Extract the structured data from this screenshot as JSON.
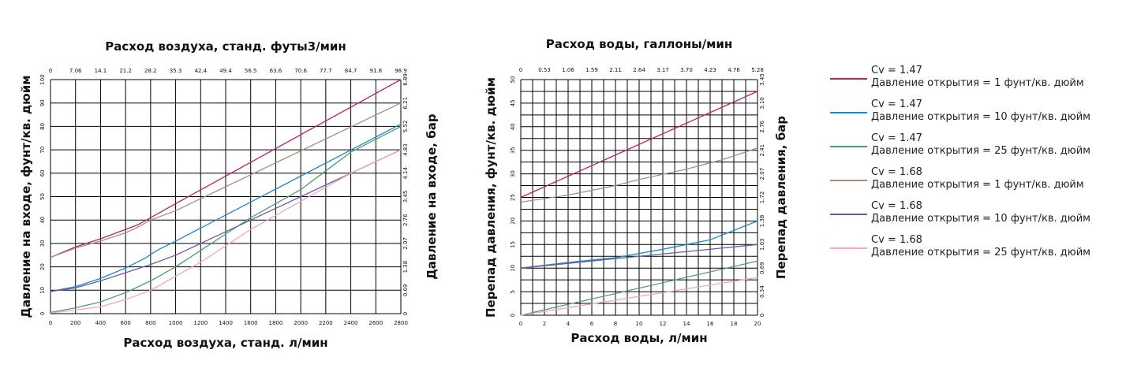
{
  "colors": {
    "s1": "#b5206e",
    "s2": "#1f86c8",
    "s3": "#4e9e6a",
    "s4": "#a89078",
    "s5": "#6a5aa8",
    "s6": "#f0a8b4"
  },
  "chart_data": [
    {
      "type": "line",
      "title": "Расход воздуха, станд. футы3/мин",
      "xlabel": "Расход воздуха, станд. л/мин",
      "ylabel": "Давление на входе, фунт/кв. дюйм",
      "y2label": "Давление на входе, бар",
      "xlim": [
        0,
        2800
      ],
      "ylim": [
        0,
        100
      ],
      "grid": true,
      "x_ticks": [
        "0",
        "200",
        "400",
        "600",
        "800",
        "1000",
        "1200",
        "1400",
        "1600",
        "1800",
        "2000",
        "2200",
        "2400",
        "2600",
        "2800"
      ],
      "x2_ticks": [
        "0",
        "7.06",
        "14.1",
        "21.2",
        "28.2",
        "35.3",
        "42.4",
        "49.4",
        "56.5",
        "63.6",
        "70.6",
        "77.7",
        "84.7",
        "91.8",
        "98.9"
      ],
      "y_ticks": [
        "0",
        "10",
        "20",
        "30",
        "40",
        "50",
        "60",
        "70",
        "80",
        "90",
        "100"
      ],
      "y2_ticks": [
        "0",
        "0.69",
        "1.38",
        "2.07",
        "2.76",
        "3.45",
        "4.14",
        "4.83",
        "5.52",
        "6.21",
        "6.89"
      ],
      "series": [
        {
          "name": "Cv = 1.47 / 1 фунт/кв. дюйм",
          "color": "s1",
          "x": [
            0,
            200,
            400,
            600,
            700,
            800,
            1000,
            2800
          ],
          "y": [
            24,
            28.5,
            32,
            36,
            38,
            41,
            47,
            100
          ]
        },
        {
          "name": "Cv = 1.47 / 10 фунт/кв. дюйм",
          "color": "s2",
          "x": [
            0,
            200,
            400,
            600,
            750,
            850,
            1000,
            2800
          ],
          "y": [
            9.5,
            11.5,
            15,
            19.5,
            23.5,
            27,
            31,
            81
          ]
        },
        {
          "name": "Cv = 1.47 / 25 фунт/кв. дюйм",
          "color": "s3",
          "x": [
            0,
            200,
            400,
            600,
            800,
            1000,
            1200,
            1400,
            1600,
            1800,
            2000,
            2200,
            2400,
            2600,
            2800
          ],
          "y": [
            0.5,
            2.5,
            5,
            9,
            14,
            20,
            27,
            34,
            41,
            47,
            53,
            61,
            69,
            74.5,
            80
          ]
        },
        {
          "name": "Cv = 1.68 / 1 фунт/кв. дюйм",
          "color": "s4",
          "x": [
            0,
            200,
            400,
            600,
            700,
            800,
            1000,
            2800
          ],
          "y": [
            24,
            28,
            31,
            34.5,
            37,
            40,
            44,
            90
          ]
        },
        {
          "name": "Cv = 1.68 / 10 фунт/кв. дюйм",
          "color": "s5",
          "x": [
            0,
            200,
            400,
            600,
            800,
            1000,
            2800
          ],
          "y": [
            9.5,
            11,
            14,
            17.5,
            21,
            25,
            70
          ]
        },
        {
          "name": "Cv = 1.68 / 25 фунт/кв. дюйм",
          "color": "s6",
          "x": [
            0,
            200,
            400,
            600,
            800,
            1000,
            1200,
            1400,
            1600,
            1800,
            2000,
            2200,
            2400,
            2600,
            2800
          ],
          "y": [
            0.3,
            1.5,
            3,
            6,
            10,
            16,
            22,
            29,
            36,
            42,
            48,
            54,
            60,
            65,
            70
          ]
        }
      ]
    },
    {
      "type": "line",
      "title": "Расход воды, галлоны/мин",
      "xlabel": "Расход воды, л/мин",
      "ylabel": "Перепад давления, фунт/кв. дюйм",
      "y2label": "Перепад давления, бар",
      "xlim": [
        0,
        20
      ],
      "ylim": [
        0,
        50
      ],
      "grid": true,
      "x_ticks": [
        "0",
        "2",
        "4",
        "6",
        "8",
        "10",
        "12",
        "14",
        "16",
        "18",
        "20"
      ],
      "x2_ticks": [
        "0",
        "0.53",
        "1.06",
        "1.59",
        "2.11",
        "2.64",
        "3.17",
        "3.70",
        "4.23",
        "4.76",
        "5.28"
      ],
      "y_ticks": [
        "0",
        "5",
        "10",
        "15",
        "20",
        "25",
        "30",
        "35",
        "40",
        "45",
        "50"
      ],
      "y2_ticks": [
        "0",
        "0.34",
        "0.69",
        "1.03",
        "1.38",
        "1.72",
        "2.07",
        "2.41",
        "2.76",
        "3.10",
        "3.45"
      ],
      "series": [
        {
          "name": "Cv = 1.47 / 1 фунт/кв. дюйм",
          "color": "s1",
          "x": [
            0,
            20
          ],
          "y": [
            25,
            47.5
          ]
        },
        {
          "name": "Cv = 1.47 / 10 фунт/кв. дюйм",
          "color": "s2",
          "x": [
            0,
            4,
            8,
            12,
            16,
            20
          ],
          "y": [
            10,
            11.2,
            12.2,
            14,
            16,
            20
          ]
        },
        {
          "name": "Cv = 1.47 / 25 фунт/кв. дюйм",
          "color": "s3",
          "x": [
            0,
            20
          ],
          "y": [
            0,
            11.5
          ]
        },
        {
          "name": "Cv = 1.68 / 1 фунт/кв. дюйм",
          "color": "s4",
          "x": [
            0,
            4,
            8,
            10,
            14,
            17,
            20
          ],
          "y": [
            24,
            25.5,
            27.5,
            28.8,
            31,
            33,
            35.5
          ]
        },
        {
          "name": "Cv = 1.68 / 10 фунт/кв. дюйм",
          "color": "s5",
          "x": [
            0,
            20
          ],
          "y": [
            10,
            15
          ]
        },
        {
          "name": "Cv = 1.68 / 25 фунт/кв. дюйм",
          "color": "s6",
          "x": [
            0,
            20
          ],
          "y": [
            0,
            8
          ]
        }
      ]
    }
  ],
  "legend": {
    "items": [
      {
        "line1": "Cv = 1.47",
        "line2": "Давление открытия = 1 фунт/кв. дюйм",
        "color": "s1"
      },
      {
        "line1": "Cv = 1.47",
        "line2": "Давление открытия = 10 фунт/кв. дюйм",
        "color": "s2"
      },
      {
        "line1": "Cv = 1.47",
        "line2": "Давление открытия = 25 фунт/кв. дюйм",
        "color": "s3"
      },
      {
        "line1": "Cv = 1.68",
        "line2": "Давление открытия = 1 фунт/кв. дюйм",
        "color": "s4"
      },
      {
        "line1": "Cv = 1.68",
        "line2": "Давление открытия = 10 фунт/кв. дюйм",
        "color": "s5"
      },
      {
        "line1": "Cv = 1.68",
        "line2": "Давление открытия = 25 фунт/кв. дюйм",
        "color": "s6"
      }
    ]
  }
}
